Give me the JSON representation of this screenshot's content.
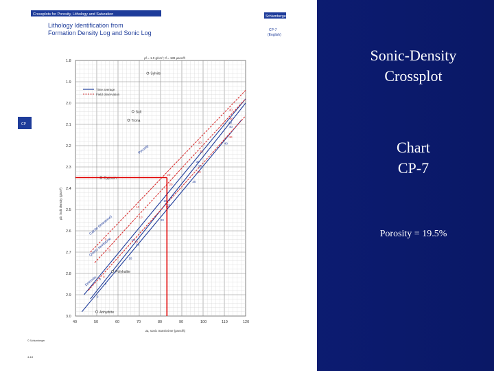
{
  "slide": {
    "title_line1": "Sonic-Density",
    "title_line2": "Crossplot",
    "chart_line1": "Chart",
    "chart_line2": "CP-7",
    "porosity_note": "Porosity = 19.5%"
  },
  "sheet": {
    "banner": "Crossplots for Porosity, Lithology and Saturation",
    "logo": "Schlumberger",
    "heading_line1": "Lithology Identification from",
    "heading_line2": "Formation Density Log and Sonic Log",
    "chart_code": "CP-7",
    "chart_units": "(English)",
    "side_tab": "CP",
    "footnote": "© Schlumberger",
    "page_number": "4-18",
    "fluid_params": "ρf = 1.0 g/cm³; tf = 189 μsec/ft",
    "legend_time_average": "Time average",
    "legend_field_observation": "Field observation"
  },
  "chart_data": {
    "type": "scatter",
    "xlabel": "Δt, sonic transit time (μsec/ft)",
    "ylabel": "ρb, bulk density (g/cm³)",
    "xlim": [
      40,
      120
    ],
    "ylim": [
      3.0,
      1.8
    ],
    "x_ticks": [
      "40",
      "50",
      "60",
      "70",
      "80",
      "90",
      "100",
      "110",
      "120"
    ],
    "y_ticks": [
      "1.8",
      "1.9",
      "2.0",
      "2.1",
      "2.2",
      "2.3",
      "2.4",
      "2.5",
      "2.6",
      "2.7",
      "2.8",
      "2.9",
      "3.0"
    ],
    "grid": true,
    "minerals": [
      {
        "name": "Sylvite",
        "x": 74,
        "y": 1.86
      },
      {
        "name": "Salt",
        "x": 67,
        "y": 2.04
      },
      {
        "name": "Trona",
        "x": 65,
        "y": 2.08
      },
      {
        "name": "Gypsum",
        "x": 52,
        "y": 2.35
      },
      {
        "name": "Polyhalite",
        "x": 57.5,
        "y": 2.79
      },
      {
        "name": "Anhydrite",
        "x": 50,
        "y": 2.98
      }
    ],
    "series": [
      {
        "name": "Sandstone",
        "color": "#1e3c9a",
        "x": [
          44,
          120
        ],
        "y": [
          2.9,
          1.98
        ]
      },
      {
        "name": "Limestone",
        "color": "#1e3c9a",
        "x": [
          47,
          120
        ],
        "y": [
          2.92,
          2.0
        ]
      },
      {
        "name": "Dolomite",
        "color": "#1e3c9a",
        "x": [
          43,
          118
        ],
        "y": [
          2.98,
          2.08
        ]
      },
      {
        "name": "Calcite (limestone)",
        "color": "#d93434",
        "x": [
          47,
          120
        ],
        "y": [
          2.7,
          1.94
        ]
      },
      {
        "name": "Quartz sandstone",
        "color": "#d93434",
        "x": [
          49,
          120
        ],
        "y": [
          2.75,
          1.98
        ]
      },
      {
        "name": "Dolomite field",
        "color": "#d93434",
        "x": [
          46,
          120
        ],
        "y": [
          2.88,
          2.06
        ]
      }
    ],
    "porosity_labels": [
      "0",
      "10",
      "20",
      "30",
      "40"
    ],
    "annotations": [
      {
        "text": "Porosity",
        "x": 70,
        "y": 2.24
      },
      {
        "text": "Calcite (limestone)",
        "x": 47,
        "y": 2.62
      },
      {
        "text": "Quartz sandstone",
        "x": 47,
        "y": 2.72
      },
      {
        "text": "Dolomite",
        "x": 45,
        "y": 2.86
      }
    ],
    "example_point": {
      "x": 83,
      "y": 2.35
    }
  }
}
